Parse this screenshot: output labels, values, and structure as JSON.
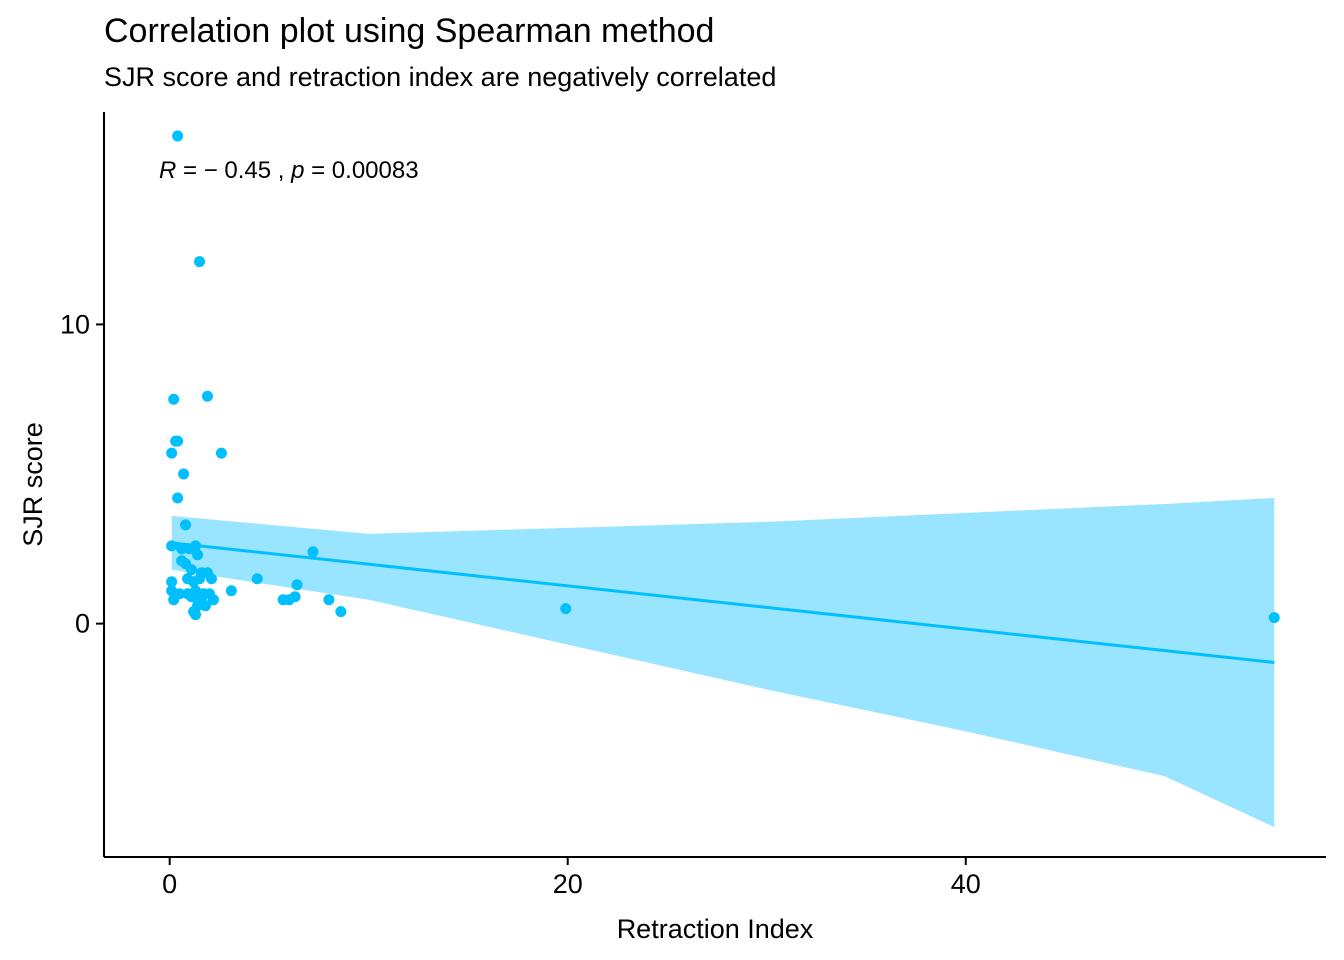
{
  "chart_data": {
    "type": "scatter",
    "title": "Correlation plot using Spearman method",
    "subtitle": "SJR score and retraction index are negatively correlated",
    "xlabel": "Retraction Index",
    "ylabel": "SJR score",
    "xlim": [
      -3.3,
      58.1
    ],
    "ylim": [
      -7.8,
      17.1
    ],
    "xticks": [
      0,
      20,
      40
    ],
    "yticks": [
      0,
      10
    ],
    "xtick_labels": [
      "0",
      "20",
      "40"
    ],
    "ytick_labels": [
      "0",
      "10"
    ],
    "grid": false,
    "colors": {
      "points": "#00BFFF",
      "line": "#00BFFF",
      "ribbon": "#99E5FF"
    },
    "annotation": {
      "r_symbol": "R",
      "r_text": " = − 0.45 , ",
      "p_symbol": "p",
      "p_text": " = 0.00083"
    },
    "points": [
      {
        "x": 0.4,
        "y": 16.3
      },
      {
        "x": 1.5,
        "y": 12.1
      },
      {
        "x": 0.2,
        "y": 7.5
      },
      {
        "x": 1.9,
        "y": 7.6
      },
      {
        "x": 0.3,
        "y": 6.1
      },
      {
        "x": 0.4,
        "y": 6.1
      },
      {
        "x": 0.1,
        "y": 5.7
      },
      {
        "x": 2.6,
        "y": 5.7
      },
      {
        "x": 0.7,
        "y": 5.0
      },
      {
        "x": 0.4,
        "y": 4.2
      },
      {
        "x": 0.8,
        "y": 3.3
      },
      {
        "x": 0.1,
        "y": 2.6
      },
      {
        "x": 0.6,
        "y": 2.5
      },
      {
        "x": 1.0,
        "y": 2.5
      },
      {
        "x": 1.3,
        "y": 2.6
      },
      {
        "x": 1.4,
        "y": 2.3
      },
      {
        "x": 7.2,
        "y": 2.4
      },
      {
        "x": 0.6,
        "y": 2.1
      },
      {
        "x": 0.8,
        "y": 2.0
      },
      {
        "x": 1.1,
        "y": 1.8
      },
      {
        "x": 1.6,
        "y": 1.7
      },
      {
        "x": 1.9,
        "y": 1.7
      },
      {
        "x": 0.1,
        "y": 1.4
      },
      {
        "x": 0.9,
        "y": 1.5
      },
      {
        "x": 1.2,
        "y": 1.4
      },
      {
        "x": 1.5,
        "y": 1.5
      },
      {
        "x": 2.1,
        "y": 1.5
      },
      {
        "x": 4.4,
        "y": 1.5
      },
      {
        "x": 6.4,
        "y": 1.3
      },
      {
        "x": 0.1,
        "y": 1.1
      },
      {
        "x": 0.5,
        "y": 1.0
      },
      {
        "x": 0.9,
        "y": 1.0
      },
      {
        "x": 1.3,
        "y": 1.1
      },
      {
        "x": 1.7,
        "y": 1.0
      },
      {
        "x": 2.0,
        "y": 1.0
      },
      {
        "x": 3.1,
        "y": 1.1
      },
      {
        "x": 0.2,
        "y": 0.8
      },
      {
        "x": 1.1,
        "y": 0.9
      },
      {
        "x": 1.6,
        "y": 0.8
      },
      {
        "x": 2.2,
        "y": 0.8
      },
      {
        "x": 5.7,
        "y": 0.8
      },
      {
        "x": 6.0,
        "y": 0.8
      },
      {
        "x": 6.3,
        "y": 0.9
      },
      {
        "x": 8.0,
        "y": 0.8
      },
      {
        "x": 1.4,
        "y": 0.6
      },
      {
        "x": 1.8,
        "y": 0.6
      },
      {
        "x": 1.2,
        "y": 0.4
      },
      {
        "x": 1.3,
        "y": 0.3
      },
      {
        "x": 8.6,
        "y": 0.4
      },
      {
        "x": 19.9,
        "y": 0.5
      },
      {
        "x": 55.5,
        "y": 0.2
      }
    ],
    "fit": {
      "x": [
        0.1,
        55.5
      ],
      "y": [
        2.7,
        -1.3
      ]
    },
    "ribbon": {
      "x": [
        0.1,
        10,
        20,
        30,
        40,
        50,
        55.5
      ],
      "lower": [
        1.8,
        0.8,
        -0.7,
        -2.2,
        -3.6,
        -5.1,
        -6.8
      ],
      "upper": [
        3.6,
        3.0,
        3.2,
        3.4,
        3.7,
        4.0,
        4.2
      ]
    }
  }
}
